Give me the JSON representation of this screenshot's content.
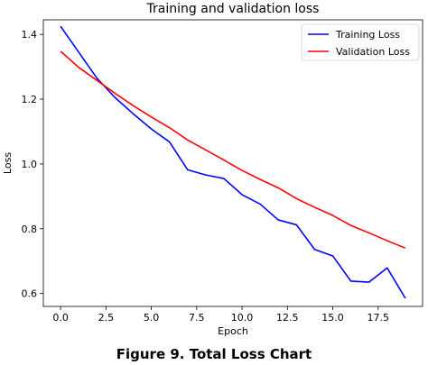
{
  "caption": "Figure 9. Total Loss Chart",
  "chart_data": {
    "type": "line",
    "title": "Training and validation loss",
    "xlabel": "Epoch",
    "ylabel": "Loss",
    "xlim": [
      -0.95,
      19.95
    ],
    "ylim": [
      0.56,
      1.445
    ],
    "xticks": [
      0.0,
      2.5,
      5.0,
      7.5,
      10.0,
      12.5,
      15.0,
      17.5
    ],
    "xtick_labels": [
      "0.0",
      "2.5",
      "5.0",
      "7.5",
      "10.0",
      "12.5",
      "15.0",
      "17.5"
    ],
    "yticks": [
      0.6,
      0.8,
      1.0,
      1.2,
      1.4
    ],
    "ytick_labels": [
      "0.6",
      "0.8",
      "1.0",
      "1.2",
      "1.4"
    ],
    "grid": false,
    "legend_position": "top-right",
    "x": [
      0,
      1,
      2,
      3,
      4,
      5,
      6,
      7,
      8,
      9,
      10,
      11,
      12,
      13,
      14,
      15,
      16,
      17,
      18,
      19
    ],
    "series": [
      {
        "name": "Training Loss",
        "color": "#0000ff",
        "values": [
          1.425,
          1.345,
          1.265,
          1.205,
          1.155,
          1.108,
          1.068,
          0.982,
          0.966,
          0.955,
          0.905,
          0.876,
          0.827,
          0.812,
          0.736,
          0.716,
          0.638,
          0.635,
          0.679,
          0.585
        ]
      },
      {
        "name": "Validation Loss",
        "color": "#ff0000",
        "values": [
          1.348,
          1.298,
          1.258,
          1.218,
          1.18,
          1.145,
          1.112,
          1.074,
          1.043,
          1.012,
          0.98,
          0.952,
          0.926,
          0.893,
          0.866,
          0.841,
          0.81,
          0.787,
          0.763,
          0.74
        ]
      }
    ]
  }
}
